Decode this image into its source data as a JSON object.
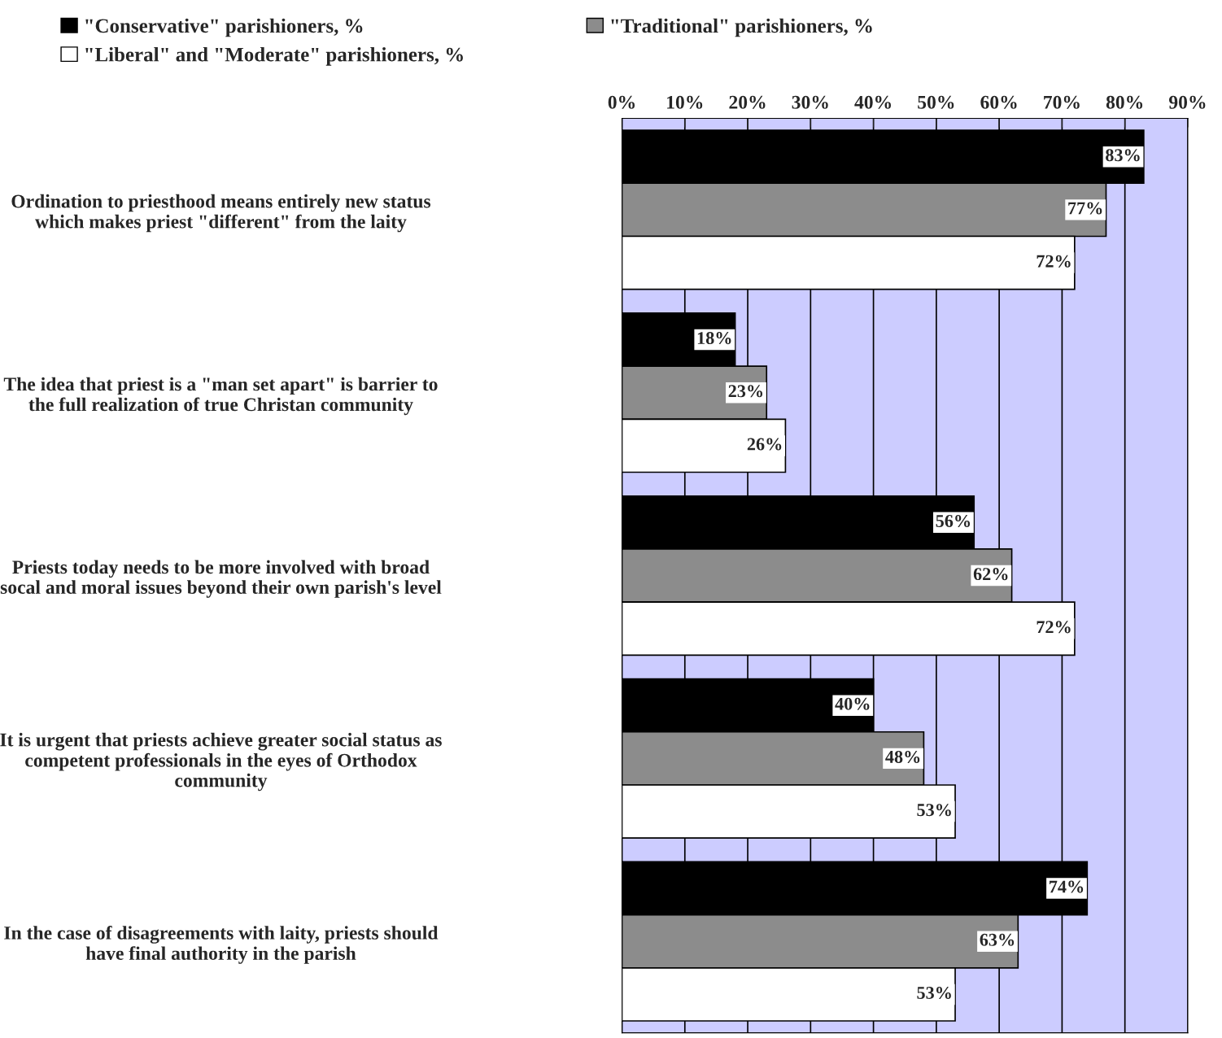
{
  "chart_data": {
    "type": "bar",
    "orientation": "horizontal",
    "categories": [
      "Ordination to priesthood means entirely new status\nwhich makes priest \"different\" from the laity",
      "The idea that priest is a \"man set apart\" is barrier to\nthe full realization of true Christan community",
      "Priests today needs to be more involved with broad\nsocal and moral issues beyond their own parish's level",
      "It is urgent that priests achieve greater social status as\ncompetent professionals in the eyes of Orthodox\ncommunity",
      "In the case of disagreements with laity, priests should\nhave final authority in the parish"
    ],
    "series": [
      {
        "name": "\"Conservative\" parishioners, %",
        "color": "#000000",
        "values": [
          83,
          18,
          56,
          40,
          74
        ],
        "value_labels": [
          "83%",
          "18%",
          "56%",
          "40%",
          "74%"
        ]
      },
      {
        "name": "\"Traditional\" parishioners, %",
        "color": "#8c8c8c",
        "values": [
          77,
          23,
          62,
          48,
          63
        ],
        "value_labels": [
          "77%",
          "23%",
          "62%",
          "48%",
          "63%"
        ]
      },
      {
        "name": "\"Liberal\" and \"Moderate\" parishioners, %",
        "color": "#ffffff",
        "values": [
          72,
          26,
          72,
          53,
          53
        ],
        "value_labels": [
          "72%",
          "26%",
          "72%",
          "53%",
          "53%"
        ]
      }
    ],
    "x2lim": [
      0,
      90
    ],
    "x2ticks": [
      {
        "value": 0,
        "label": "0%"
      },
      {
        "value": 10,
        "label": "10%"
      },
      {
        "value": 20,
        "label": "20%"
      },
      {
        "value": 30,
        "label": "30%"
      },
      {
        "value": 40,
        "label": "40%"
      },
      {
        "value": 50,
        "label": "50%"
      },
      {
        "value": 60,
        "label": "60%"
      },
      {
        "value": 70,
        "label": "70%"
      },
      {
        "value": 80,
        "label": "80%"
      },
      {
        "value": 90,
        "label": "90%"
      }
    ],
    "grid": "x",
    "legend": "top left"
  }
}
